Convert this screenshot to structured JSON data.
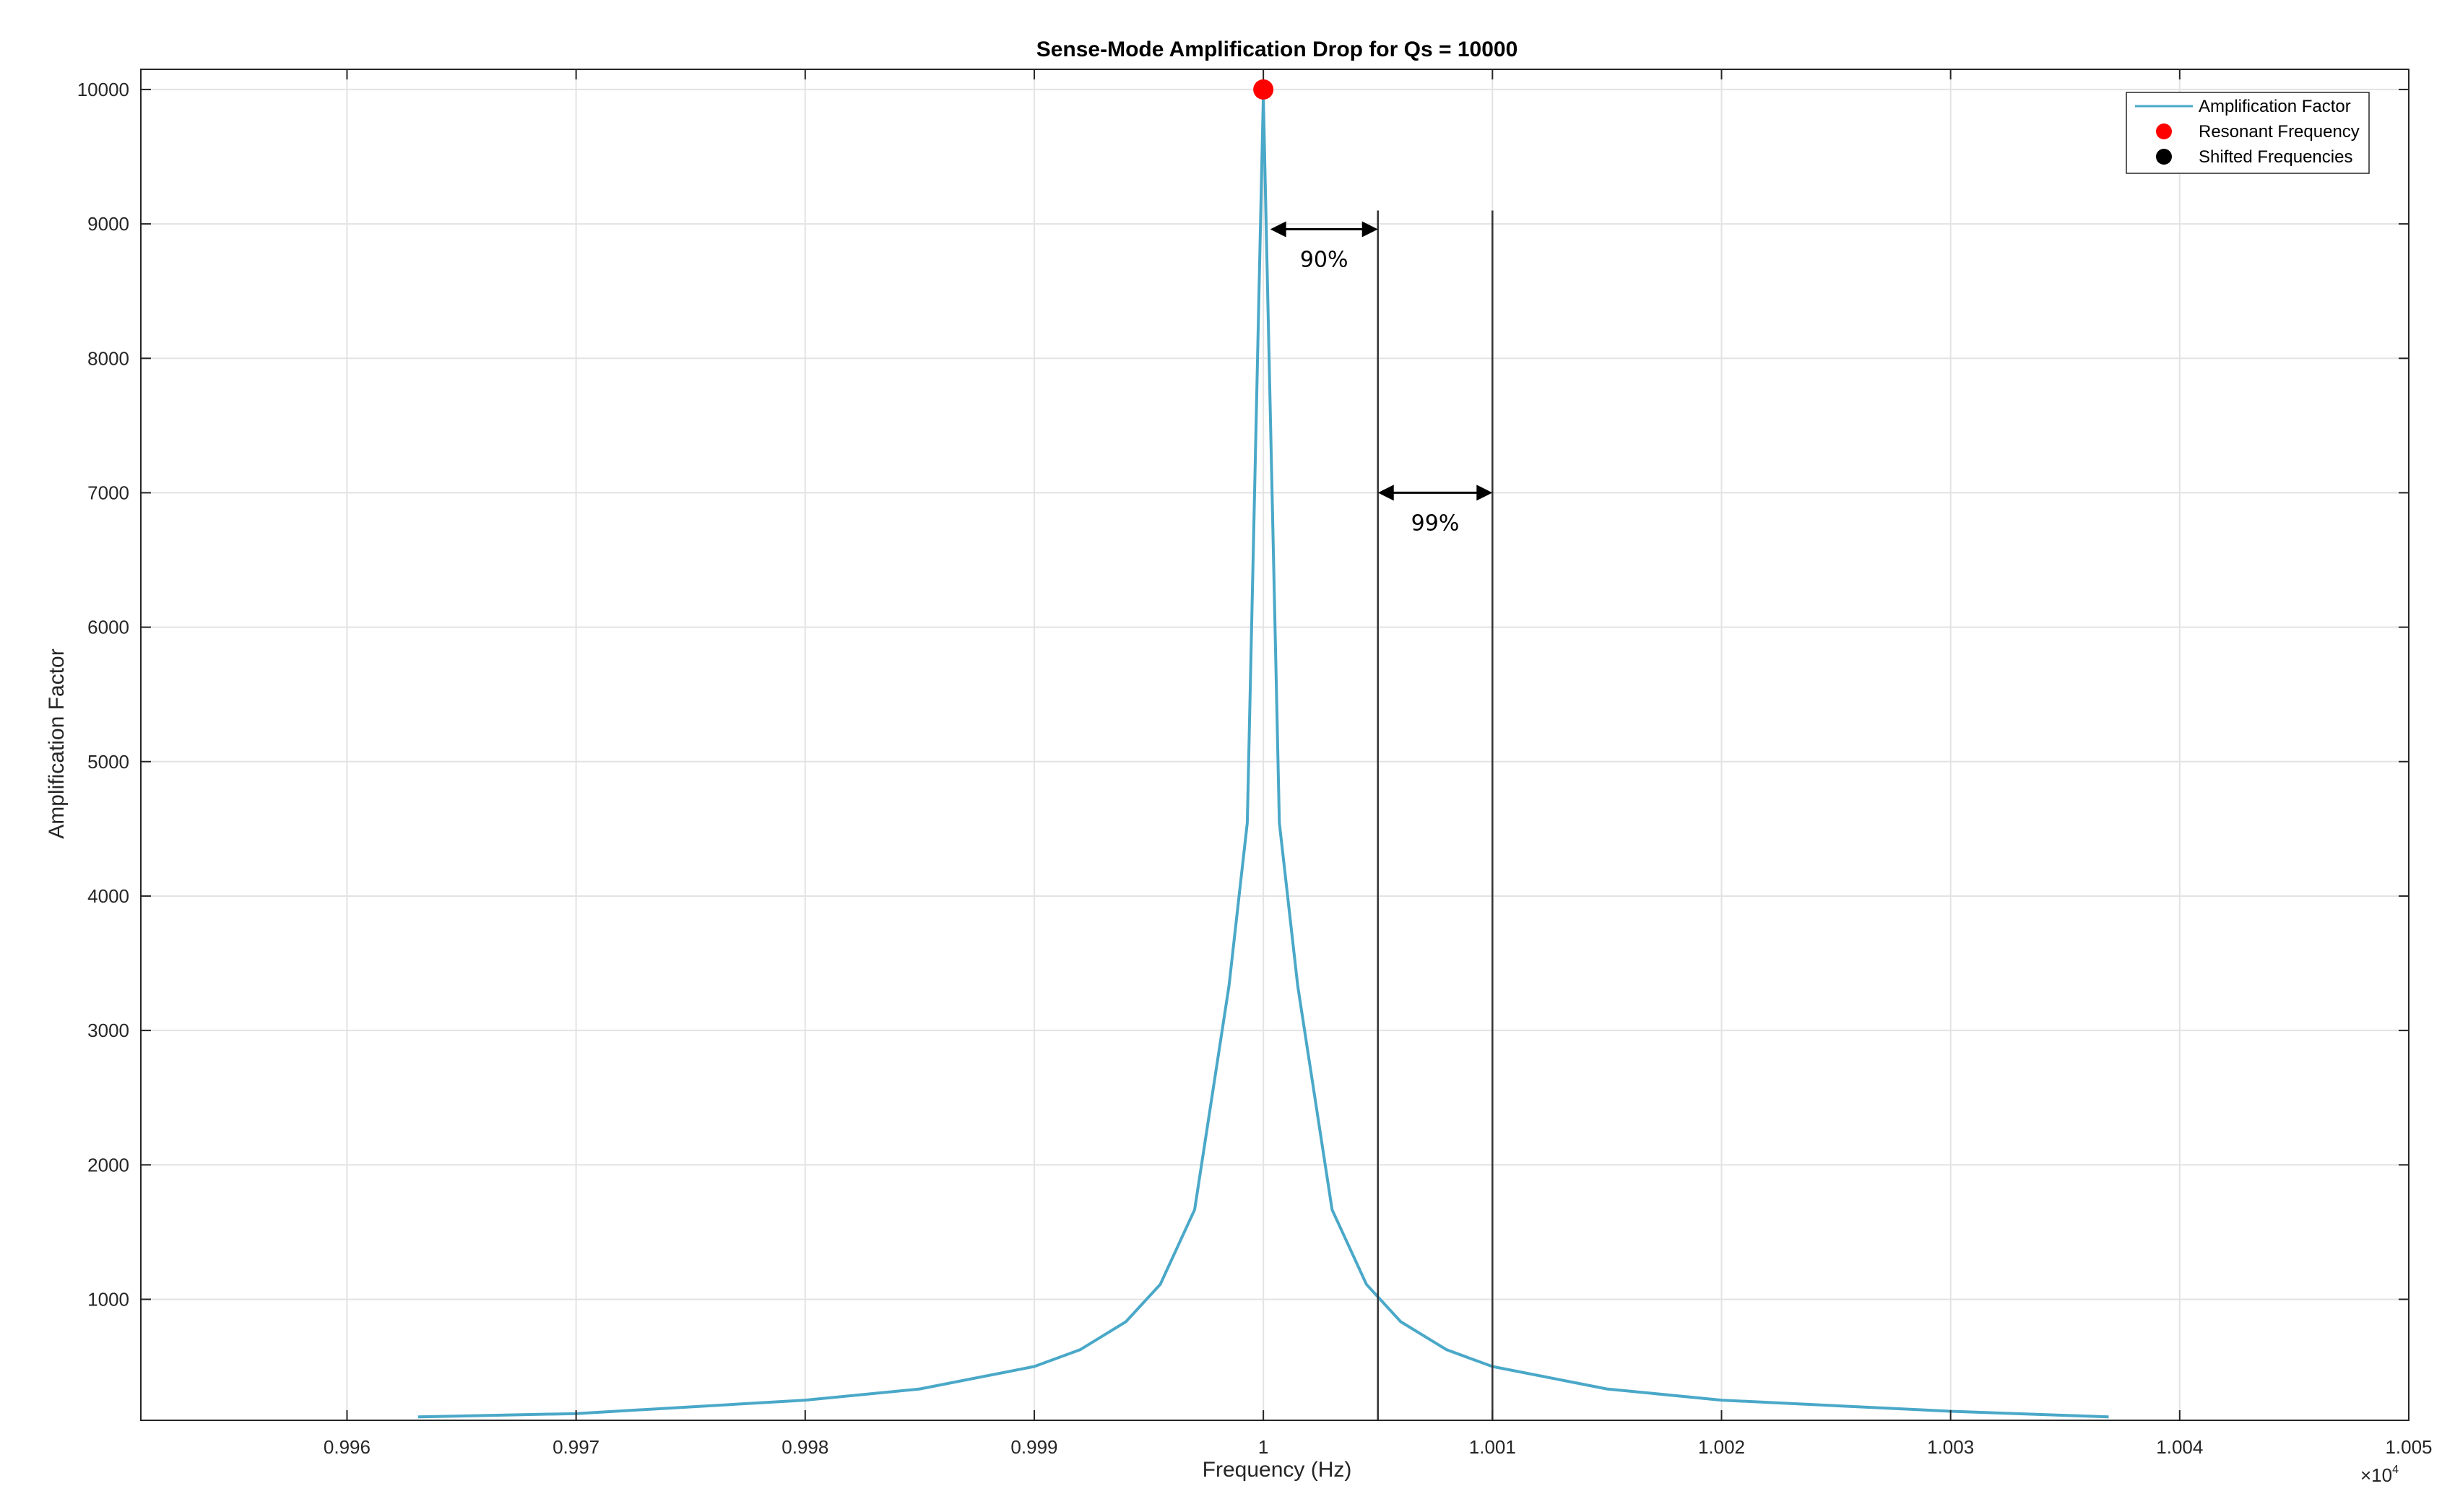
{
  "chart_data": {
    "type": "line",
    "title": "Sense-Mode Amplification Drop for Qs = 10000",
    "xlabel": "Frequency (Hz)",
    "ylabel": "Amplification Factor",
    "x_multiplier_label": "×10",
    "x_multiplier_exp": "4",
    "xlim": [
      0.9951,
      1.005
    ],
    "ylim": [
      100,
      10150
    ],
    "x_scale_note": "x values shown in units of 10^4 Hz",
    "x_ticks": [
      0.996,
      0.997,
      0.998,
      0.999,
      1,
      1.001,
      1.002,
      1.003,
      1.004,
      1.005
    ],
    "x_tick_labels": [
      "0.996",
      "0.997",
      "0.998",
      "0.999",
      "1",
      "1.001",
      "1.002",
      "1.003",
      "1.004",
      "1.005"
    ],
    "y_ticks": [
      1000,
      2000,
      3000,
      4000,
      5000,
      6000,
      7000,
      8000,
      9000,
      10000
    ],
    "y_tick_labels": [
      "1000",
      "2000",
      "3000",
      "4000",
      "5000",
      "6000",
      "7000",
      "8000",
      "9000",
      "10000"
    ],
    "grid": true,
    "legend_position": "top-right",
    "series": [
      {
        "name": "Amplification Factor",
        "color": "#4aa8c8",
        "x": [
          0.99631,
          0.997,
          0.998,
          0.9985,
          0.999,
          0.9992,
          0.9994,
          0.99955,
          0.9997,
          0.99985,
          0.99993,
          1,
          1.00007,
          1.00015,
          1.0003,
          1.00045,
          1.0006,
          1.0008,
          1.001,
          1.0015,
          1.002,
          1.003,
          1.00369
        ],
        "y": [
          125,
          150,
          250,
          333,
          500,
          625,
          833,
          1111,
          1667,
          3333,
          4545,
          9950,
          4545,
          3333,
          1667,
          1111,
          833,
          625,
          500,
          333,
          250,
          167,
          125
        ]
      },
      {
        "name": "Resonant Frequency",
        "color": "#ff0000",
        "x": [
          1
        ],
        "y": [
          10000
        ]
      },
      {
        "name": "Shifted Frequencies",
        "color": "#000000",
        "x": [
          1.0005,
          1.001
        ],
        "y": [
          1000,
          500
        ]
      }
    ],
    "annotations": [
      {
        "text": "90%",
        "x_from": 1.00003,
        "x_to": 1.0005,
        "y": 8960,
        "line_x": 1.0005,
        "line_y_top": 9100
      },
      {
        "text": "99%",
        "x_from": 1.0005,
        "x_to": 1.001,
        "y": 7000,
        "line_x": 1.001,
        "line_y_top": 9100
      }
    ]
  }
}
